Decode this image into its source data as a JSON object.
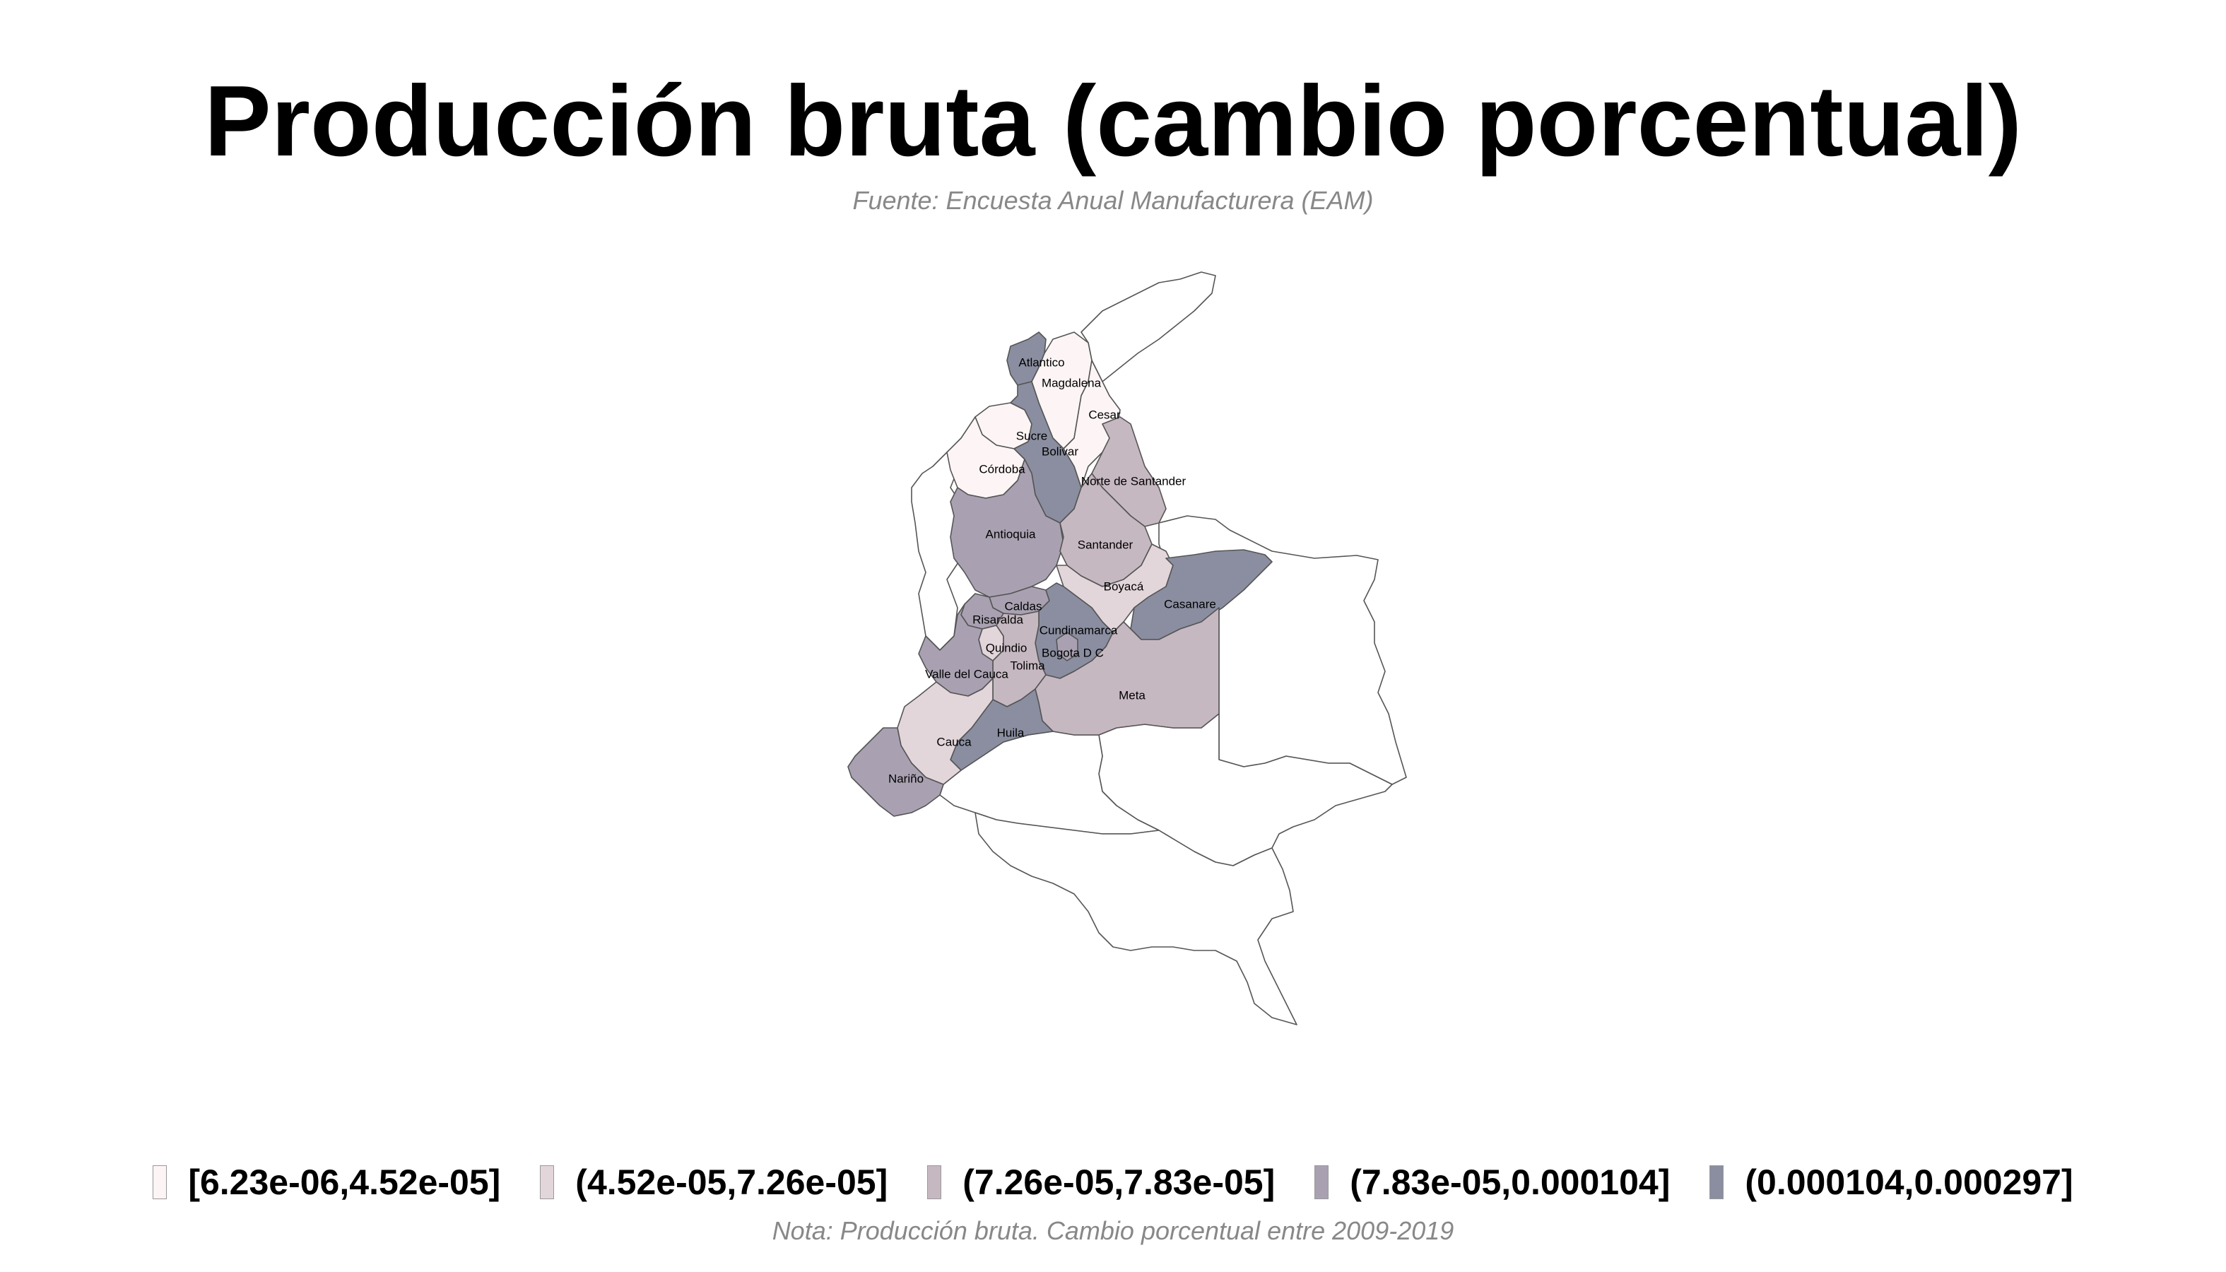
{
  "title": "Producción bruta (cambio porcentual)",
  "source": "Fuente: Encuesta Anual Manufacturera (EAM)",
  "note": "Nota: Producción bruta. Cambio porcentual entre 2009-2019",
  "legend": {
    "bins": [
      {
        "label": "[6.23e-06,4.52e-05]",
        "color": "#FDF5F5"
      },
      {
        "label": "(4.52e-05,7.26e-05]",
        "color": "#E3D6DA"
      },
      {
        "label": "(7.26e-05,7.83e-05]",
        "color": "#C6B8C1"
      },
      {
        "label": "(7.83e-05,0.000104]",
        "color": "#A9A1B1"
      },
      {
        "label": "(0.000104,0.000297]",
        "color": "#8A8EA0"
      }
    ]
  },
  "departments": [
    {
      "name": "Atlantico",
      "bin": 4
    },
    {
      "name": "Magdalena",
      "bin": 0
    },
    {
      "name": "Cesar",
      "bin": 0
    },
    {
      "name": "Sucre",
      "bin": 0
    },
    {
      "name": "Bolivar",
      "bin": 4
    },
    {
      "name": "Córdoba",
      "bin": 0
    },
    {
      "name": "Norte de Santander",
      "bin": 2
    },
    {
      "name": "Antioquia",
      "bin": 3
    },
    {
      "name": "Santander",
      "bin": 2
    },
    {
      "name": "Boyacá",
      "bin": 1
    },
    {
      "name": "Casanare",
      "bin": 4
    },
    {
      "name": "Caldas",
      "bin": 3
    },
    {
      "name": "Risaralda",
      "bin": 3
    },
    {
      "name": "Cundinamarca",
      "bin": 4
    },
    {
      "name": "Quindio",
      "bin": 1
    },
    {
      "name": "Bogota D C",
      "bin": 3
    },
    {
      "name": "Tolima",
      "bin": 2
    },
    {
      "name": "Valle del Cauca",
      "bin": 3
    },
    {
      "name": "Meta",
      "bin": 2
    },
    {
      "name": "Huila",
      "bin": 4
    },
    {
      "name": "Cauca",
      "bin": 1
    },
    {
      "name": "Nariño",
      "bin": 3
    }
  ]
}
